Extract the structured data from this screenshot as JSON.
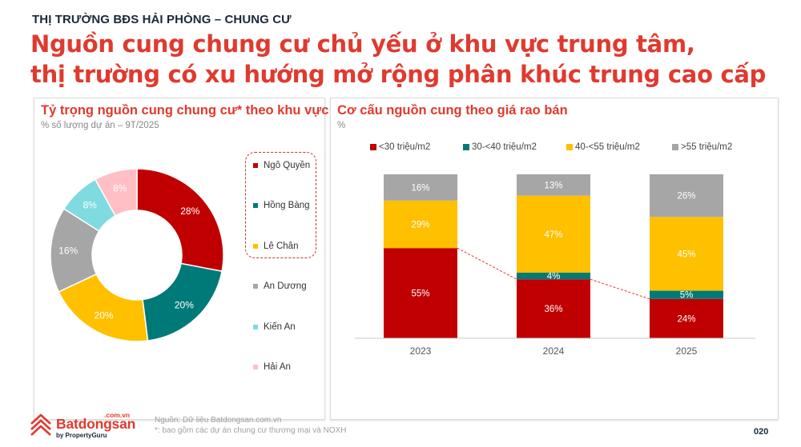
{
  "header": {
    "kicker": "THỊ TRƯỜNG BĐS HẢI PHÒNG – CHUNG CƯ",
    "headline_line1": "Nguồn cung chung cư chủ yếu ở khu vực trung tâm,",
    "headline_line2": "thị trường có xu hướng mở rộng phân khúc trung cao cấp"
  },
  "left_panel": {
    "title": "Tỷ trọng nguồn cung chung cư* theo khu vực",
    "subtitle": "% số lượng dự án – 9T/2025",
    "legend": [
      {
        "label": "Ngô Quyền",
        "color": "#c00000"
      },
      {
        "label": "Hồng Bàng",
        "color": "#007a78"
      },
      {
        "label": "Lê Chân",
        "color": "#ffc000"
      },
      {
        "label": "An Dương",
        "color": "#a6a6a6"
      },
      {
        "label": "Kiến An",
        "color": "#7fdbe0"
      },
      {
        "label": "Hải An",
        "color": "#ffbfc4"
      }
    ],
    "slice_labels": [
      "28%",
      "20%",
      "20%",
      "16%",
      "8%",
      "8%"
    ]
  },
  "right_panel": {
    "title": "Cơ cấu nguồn cung theo giá rao bán",
    "subtitle": "%",
    "legend": [
      {
        "label": "<30 triệu/m2",
        "color": "#c00000"
      },
      {
        "label": "30-<40 triệu/m2",
        "color": "#007a78"
      },
      {
        "label": "40-<55 triệu/m2",
        "color": "#ffc000"
      },
      {
        "label": ">55 triệu/m2",
        "color": "#a6a6a6"
      }
    ],
    "years": [
      "2023",
      "2024",
      "2025"
    ],
    "labels": {
      "2023": [
        "55%",
        "",
        "29%",
        "16%"
      ],
      "2024": [
        "36%",
        "4%",
        "47%",
        "13%"
      ],
      "2025": [
        "24%",
        "5%",
        "45%",
        "26%"
      ]
    }
  },
  "footer": {
    "source": "Nguồn: Dữ liệu Batdongsan.com.vn",
    "note": "*: bao gồm các dự án chung cư thương mại và NOXH",
    "page_number": "020",
    "logo_name": "Batdongsan",
    "logo_domain": ".com.vn",
    "logo_by": "by PropertyGuru"
  },
  "chart_data": [
    {
      "type": "pie",
      "title": "Tỷ trọng nguồn cung chung cư* theo khu vực",
      "subtitle": "% số lượng dự án – 9T/2025",
      "categories": [
        "Ngô Quyền",
        "Hồng Bàng",
        "Lê Chân",
        "An Dương",
        "Kiến An",
        "Hải An"
      ],
      "values": [
        28,
        20,
        20,
        16,
        8,
        8
      ],
      "colors": [
        "#c00000",
        "#007a78",
        "#ffc000",
        "#a6a6a6",
        "#7fdbe0",
        "#ffbfc4"
      ],
      "donut": true,
      "legend_position": "right",
      "annotations": [
        "Dashed box highlights Ngô Quyền, Hồng Bàng, Lê Chân"
      ]
    },
    {
      "type": "bar",
      "stacked": true,
      "percent": true,
      "title": "Cơ cấu nguồn cung theo giá rao bán",
      "subtitle": "%",
      "categories": [
        "2023",
        "2024",
        "2025"
      ],
      "series": [
        {
          "name": "<30 triệu/m2",
          "color": "#c00000",
          "values": [
            55,
            36,
            24
          ]
        },
        {
          "name": "30-<40 triệu/m2",
          "color": "#007a78",
          "values": [
            0,
            4,
            5
          ]
        },
        {
          "name": "40-<55 triệu/m2",
          "color": "#ffc000",
          "values": [
            29,
            47,
            45
          ]
        },
        {
          "name": ">55 triệu/m2",
          "color": "#a6a6a6",
          "values": [
            16,
            13,
            26
          ]
        }
      ],
      "ylim": [
        0,
        100
      ],
      "grid": false,
      "legend_position": "top",
      "annotations": [
        "Dashed red line connecting tops of <30 triệu/m2 segments"
      ]
    }
  ]
}
